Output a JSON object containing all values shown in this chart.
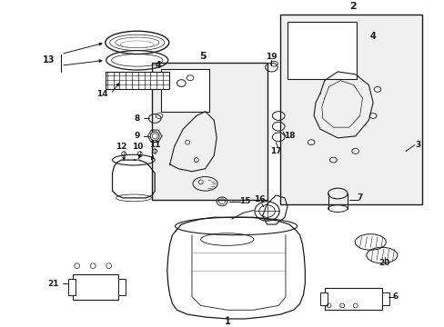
{
  "bg_color": "#ffffff",
  "figsize": [
    4.89,
    3.6
  ],
  "dpi": 100,
  "black": "#1a1a1a",
  "gray": "#888888",
  "light_gray": "#cccccc"
}
